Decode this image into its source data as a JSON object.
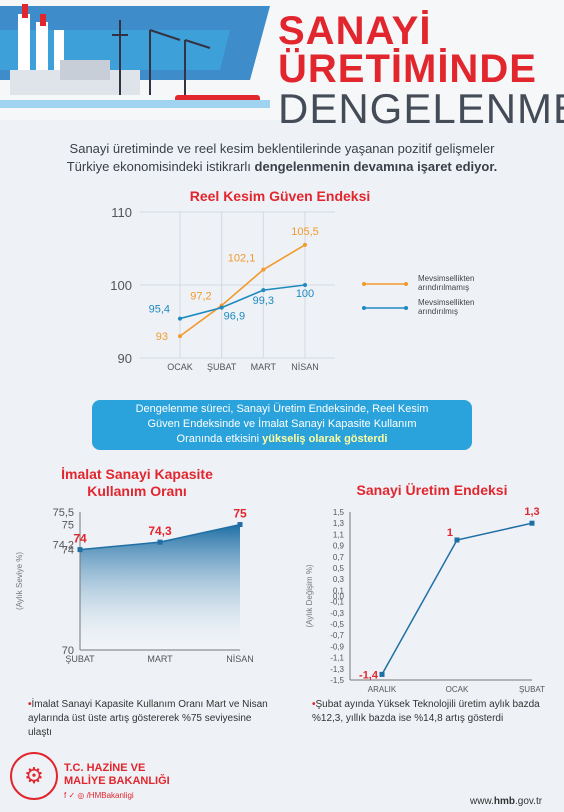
{
  "header": {
    "title_line1": "SANAYİ",
    "title_line2": "ÜRETİMİNDE",
    "title_line3": "DENGELENME"
  },
  "intro": {
    "line1": "Sanayi üretiminde ve reel kesim beklentilerinde yaşanan pozitif gelişmeler",
    "line2_start": "Türkiye ekonomisindeki istikrarlı ",
    "line2_bold": "dengelenmenin devamına işaret ediyor."
  },
  "banner": {
    "line1": "Dengelenme süreci, Sanayi Üretim Endeksinde, Reel Kesim",
    "line2": "Güven Endeksinde ve İmalat Sanayi Kapasite Kullanım",
    "line3_start": "Oranında etkisini ",
    "line3_bold": "yükseliş olarak gösterdi"
  },
  "notes": {
    "kko": "İmalat Sanayi Kapasite Kullanım Oranı Mart ve Nisan aylarında üst üste artış göstererek %75 seviyesine ulaştı",
    "sue": "Şubat ayında Yüksek Teknolojili üretim aylık bazda %12,3, yıllık bazda ise %14,8 artış gösterdi"
  },
  "footer": {
    "org_line1": "T.C. HAZİNE VE",
    "org_line2": "MALİYE BAKANLIĞI",
    "social": "f ✓ ◎ /HMBakanligi",
    "web_prefix": "www.",
    "web_bold": "hmb",
    "web_suffix": ".gov.tr"
  },
  "colors": {
    "red": "#e2262e",
    "orange": "#f39a2e",
    "blue": "#1f8ac0",
    "dark": "#444c58",
    "banner": "#2aa3dc"
  },
  "chart_data": [
    {
      "type": "line",
      "title": "Reel Kesim Güven Endeksi",
      "categories": [
        "OCAK",
        "ŞUBAT",
        "MART",
        "NİSAN"
      ],
      "ylim": [
        90,
        110
      ],
      "yticks": [
        "90",
        "100",
        "110"
      ],
      "grid": true,
      "legend_position": "right",
      "series": [
        {
          "name": "Mevsimsellikten arındırılmamış",
          "values": [
            93,
            97.2,
            102.1,
            105.5
          ],
          "labels": [
            "93",
            "97,2",
            "102,1",
            "105,5"
          ],
          "color": "#f39a2e"
        },
        {
          "name": "Mevsimsellikten arındırılmış",
          "values": [
            95.4,
            96.9,
            99.3,
            100
          ],
          "labels": [
            "95,4",
            "96,9",
            "99,3",
            "100"
          ],
          "color": "#1f8ac0"
        }
      ]
    },
    {
      "type": "area",
      "title": "İmalat Sanayi Kapasite Kullanım Oranı",
      "categories": [
        "ŞUBAT",
        "MART",
        "NİSAN"
      ],
      "values": [
        74,
        74.3,
        75
      ],
      "labels": [
        "74",
        "74,3",
        "75"
      ],
      "ylabel": "(Aylık Seviye %)",
      "ylim": [
        70,
        75.5
      ],
      "yticks": [
        "70",
        "74",
        "74,2",
        "75",
        "75,5"
      ],
      "yticks_values": [
        70,
        74,
        74.2,
        75,
        75.5
      ],
      "grid": false
    },
    {
      "type": "line",
      "title": "Sanayi Üretim Endeksi",
      "categories": [
        "ARALIK",
        "OCAK",
        "ŞUBAT"
      ],
      "values": [
        -1.4,
        1,
        1.3
      ],
      "labels": [
        "-1,4",
        "1",
        "1,3"
      ],
      "ylabel": "(Aylık Değişim %)",
      "ylim": [
        -1.5,
        1.5
      ],
      "yticks": [
        "-1,5",
        "-1,3",
        "-1,1",
        "-0,9",
        "-0,7",
        "-0,5",
        "-0,3",
        "-0,1",
        "0,0",
        "0,1",
        "0,3",
        "0,5",
        "0,7",
        "0,9",
        "1,1",
        "1,3",
        "1,5"
      ],
      "yticks_values": [
        -1.5,
        -1.3,
        -1.1,
        -0.9,
        -0.7,
        -0.5,
        -0.3,
        -0.1,
        0,
        0.1,
        0.3,
        0.5,
        0.7,
        0.9,
        1.1,
        1.3,
        1.5
      ],
      "grid": false
    }
  ]
}
